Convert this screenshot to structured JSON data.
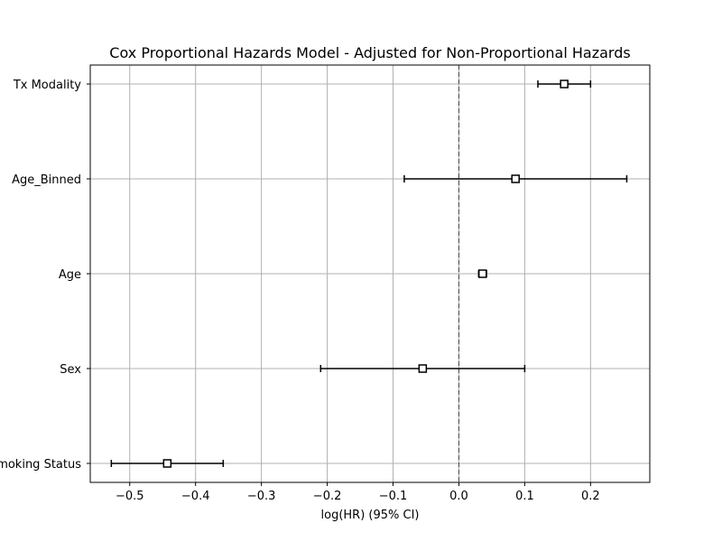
{
  "chart_data": {
    "type": "forest",
    "title": "Cox Proportional Hazards Model - Adjusted for Non-Proportional Hazards",
    "xlabel": "log(HR) (95% CI)",
    "ylabel": "",
    "xlim": [
      -0.56,
      0.29
    ],
    "xticks": [
      -0.5,
      -0.4,
      -0.3,
      -0.2,
      -0.1,
      0.0,
      0.1,
      0.2
    ],
    "xtick_labels": [
      "−0.5",
      "−0.4",
      "−0.3",
      "−0.2",
      "−0.1",
      "0.0",
      "0.1",
      "0.2"
    ],
    "reference_line": 0,
    "grid": true,
    "marker": "square",
    "colors": {
      "markers": "#000000",
      "grid": "#b0b0b0",
      "reference": "#444444"
    },
    "rows": [
      {
        "label": "Tx Modality",
        "estimate": 0.16,
        "lower": 0.12,
        "upper": 0.2
      },
      {
        "label": "Age_Binned",
        "estimate": 0.086,
        "lower": -0.083,
        "upper": 0.255
      },
      {
        "label": "Age",
        "estimate": 0.036,
        "lower": 0.03,
        "upper": 0.042
      },
      {
        "label": "Sex",
        "estimate": -0.055,
        "lower": -0.21,
        "upper": 0.1
      },
      {
        "label": "Smoking Status",
        "estimate": -0.443,
        "lower": -0.528,
        "upper": -0.358
      }
    ]
  }
}
